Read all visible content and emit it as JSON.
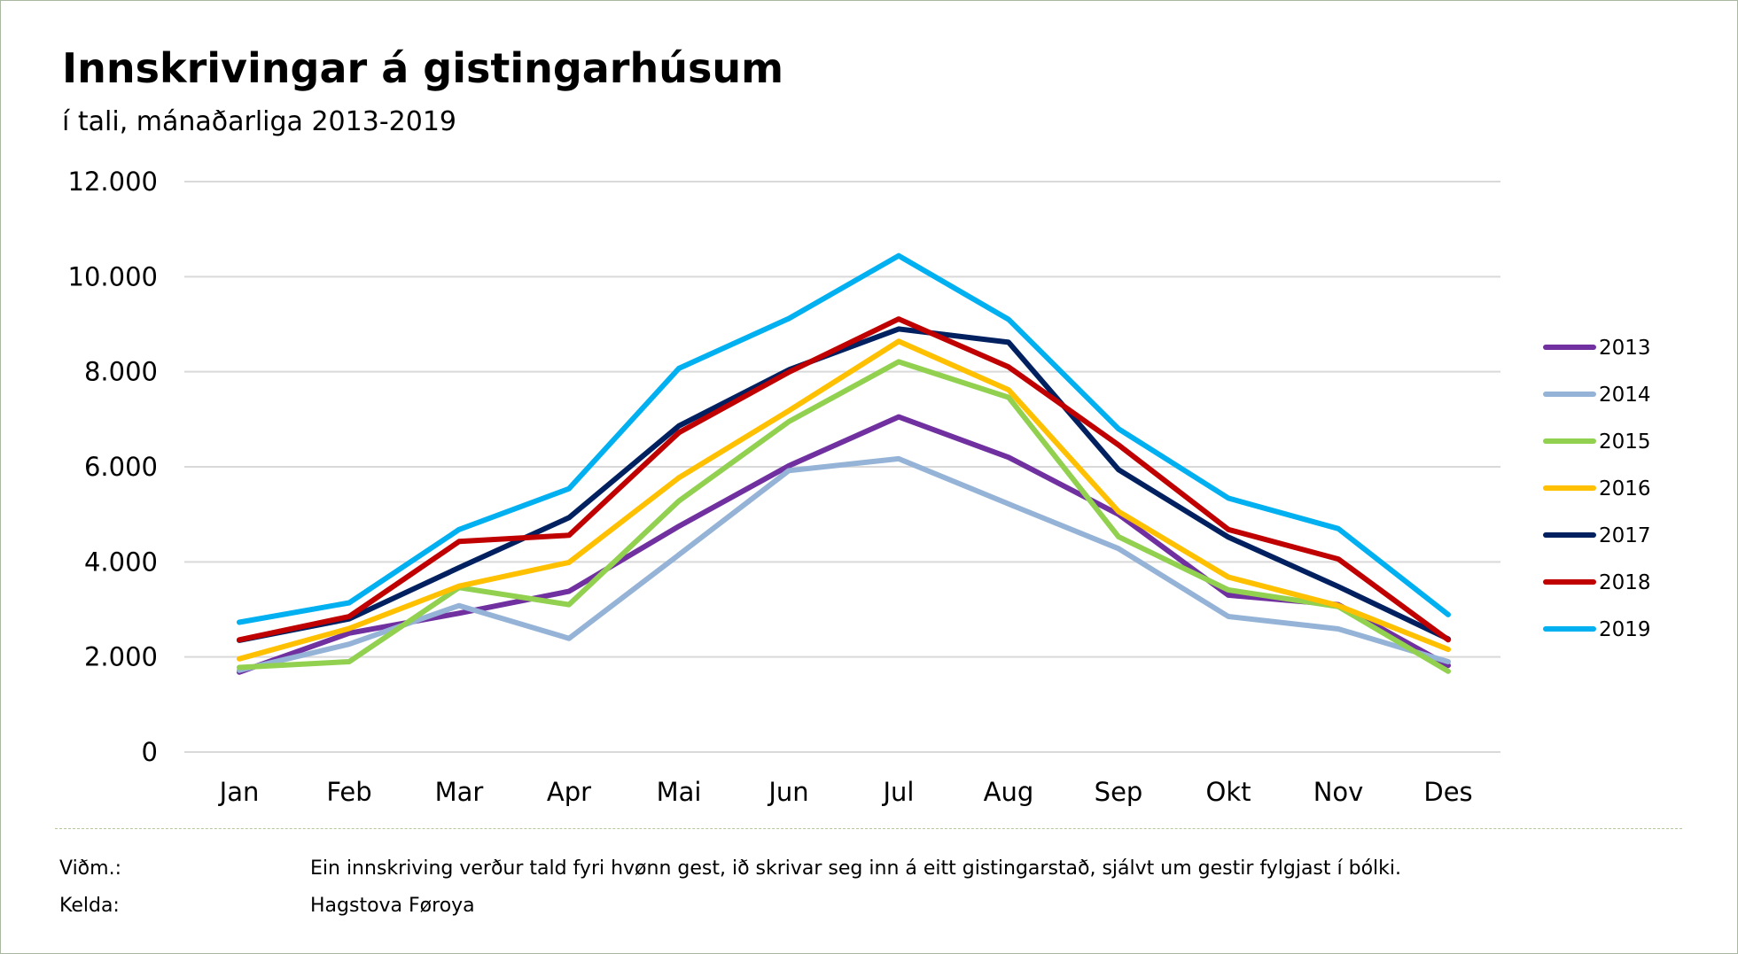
{
  "title": "Innskrivingar á gistingarhúsum",
  "subtitle": "í tali, mánaðarliga 2013-2019",
  "chart_data": {
    "type": "line",
    "title": "Innskrivingar á gistingarhúsum",
    "subtitle": "í tali, mánaðarliga 2013-2019",
    "xlabel": "",
    "ylabel": "",
    "ylim": [
      0,
      12000
    ],
    "yticks": [
      0,
      2000,
      4000,
      6000,
      8000,
      10000,
      12000
    ],
    "ytick_labels": [
      "0",
      "2.000",
      "4.000",
      "6.000",
      "8.000",
      "10.000",
      "12.000"
    ],
    "grid": true,
    "legend_position": "right",
    "categories": [
      "Jan",
      "Feb",
      "Mar",
      "Apr",
      "Mai",
      "Jun",
      "Jul",
      "Aug",
      "Sep",
      "Okt",
      "Nov",
      "Des"
    ],
    "series": [
      {
        "name": "2013",
        "color": "#7030a0",
        "values": [
          1680,
          2500,
          2920,
          3380,
          4750,
          6020,
          7050,
          6200,
          5000,
          3300,
          3100,
          1820
        ]
      },
      {
        "name": "2014",
        "color": "#95b3d7",
        "values": [
          1720,
          2270,
          3080,
          2390,
          4150,
          5920,
          6170,
          5220,
          4280,
          2850,
          2590,
          1900
        ]
      },
      {
        "name": "2015",
        "color": "#92d050",
        "values": [
          1780,
          1900,
          3460,
          3100,
          5280,
          6950,
          8210,
          7460,
          4530,
          3410,
          3060,
          1700
        ]
      },
      {
        "name": "2016",
        "color": "#ffc000",
        "values": [
          1960,
          2600,
          3490,
          3990,
          5770,
          7180,
          8640,
          7620,
          5060,
          3680,
          3080,
          2160
        ]
      },
      {
        "name": "2017",
        "color": "#002060",
        "values": [
          2350,
          2800,
          3880,
          4930,
          6860,
          8040,
          8900,
          8620,
          5940,
          4520,
          3480,
          2380
        ]
      },
      {
        "name": "2018",
        "color": "#c00000",
        "values": [
          2360,
          2850,
          4430,
          4560,
          6720,
          7990,
          9110,
          8100,
          6460,
          4680,
          4060,
          2360
        ]
      },
      {
        "name": "2019",
        "color": "#00b0f0",
        "values": [
          2730,
          3140,
          4680,
          5540,
          8070,
          9120,
          10440,
          9100,
          6800,
          5340,
          4700,
          2890
        ]
      }
    ]
  },
  "notes": {
    "comment_label": "Viðm.:",
    "comment_text": "Ein innskriving verður tald fyri hvønn gest, ið skrivar seg inn á eitt gistingarstað, sjálvt um gestir fylgjast í bólki.",
    "source_label": "Kelda:",
    "source_text": "Hagstova Føroya"
  }
}
